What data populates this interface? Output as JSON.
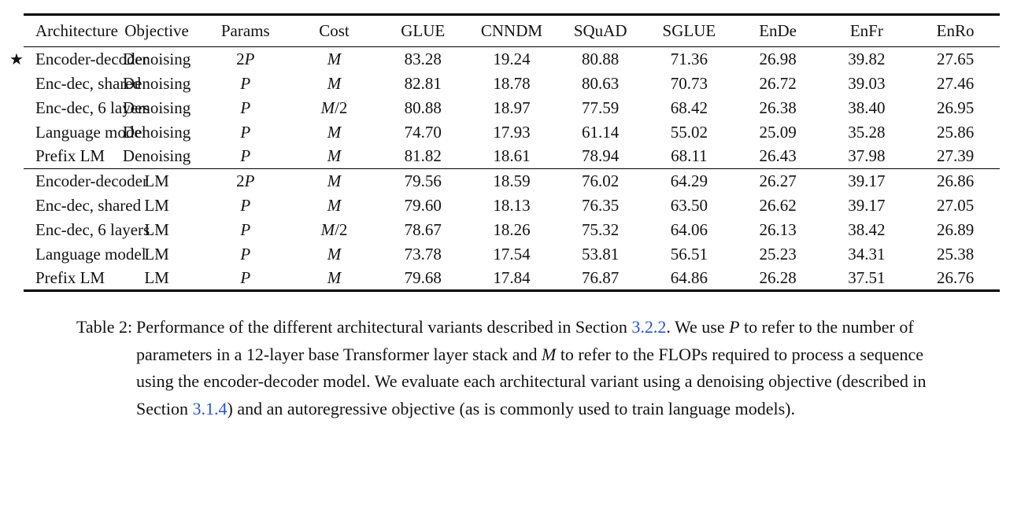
{
  "colors": {
    "link_blue": "#2556c7",
    "text": "#121212",
    "rule": "#000000",
    "background": "#ffffff"
  },
  "table": {
    "star_symbol": "★",
    "columns": [
      "Architecture",
      "Objective",
      "Params",
      "Cost",
      "GLUE",
      "CNNDM",
      "SQuAD",
      "SGLUE",
      "EnDe",
      "EnFr",
      "EnRo"
    ],
    "sections": [
      {
        "rows": [
          {
            "star": true,
            "cells": [
              "Encoder-decoder",
              "Denoising",
              "2P",
              "M",
              "83.28",
              "19.24",
              "80.88",
              "71.36",
              "26.98",
              "39.82",
              "27.65"
            ],
            "bold": [
              4,
              5,
              6,
              7,
              8,
              9,
              10
            ]
          },
          {
            "star": false,
            "cells": [
              "Enc-dec, shared",
              "Denoising",
              "P",
              "M",
              "82.81",
              "18.78",
              "80.63",
              "70.73",
              "26.72",
              "39.03",
              "27.46"
            ],
            "bold": [
              6,
              7,
              10
            ]
          },
          {
            "star": false,
            "cells": [
              "Enc-dec, 6 layers",
              "Denoising",
              "P",
              "M/2",
              "80.88",
              "18.97",
              "77.59",
              "68.42",
              "26.38",
              "38.40",
              "26.95"
            ],
            "bold": []
          },
          {
            "star": false,
            "cells": [
              "Language model",
              "Denoising",
              "P",
              "M",
              "74.70",
              "17.93",
              "61.14",
              "55.02",
              "25.09",
              "35.28",
              "25.86"
            ],
            "bold": []
          },
          {
            "star": false,
            "cells": [
              "Prefix LM",
              "Denoising",
              "P",
              "M",
              "81.82",
              "18.61",
              "78.94",
              "68.11",
              "26.43",
              "37.98",
              "27.39"
            ],
            "bold": []
          }
        ]
      },
      {
        "rows": [
          {
            "star": false,
            "cells": [
              "Encoder-decoder",
              "LM",
              "2P",
              "M",
              "79.56",
              "18.59",
              "76.02",
              "64.29",
              "26.27",
              "39.17",
              "26.86"
            ],
            "bold": []
          },
          {
            "star": false,
            "cells": [
              "Enc-dec, shared",
              "LM",
              "P",
              "M",
              "79.60",
              "18.13",
              "76.35",
              "63.50",
              "26.62",
              "39.17",
              "27.05"
            ],
            "bold": []
          },
          {
            "star": false,
            "cells": [
              "Enc-dec, 6 layers",
              "LM",
              "P",
              "M/2",
              "78.67",
              "18.26",
              "75.32",
              "64.06",
              "26.13",
              "38.42",
              "26.89"
            ],
            "bold": []
          },
          {
            "star": false,
            "cells": [
              "Language model",
              "LM",
              "P",
              "M",
              "73.78",
              "17.54",
              "53.81",
              "56.51",
              "25.23",
              "34.31",
              "25.38"
            ],
            "bold": []
          },
          {
            "star": false,
            "cells": [
              "Prefix LM",
              "LM",
              "P",
              "M",
              "79.68",
              "17.84",
              "76.87",
              "64.86",
              "26.28",
              "37.51",
              "26.76"
            ],
            "bold": []
          }
        ]
      }
    ]
  },
  "caption": {
    "label": "Table 2:",
    "segments": [
      {
        "t": "text",
        "v": "Performance of the different architectural variants described in Section "
      },
      {
        "t": "link",
        "v": "3.2.2"
      },
      {
        "t": "text",
        "v": ". We use "
      },
      {
        "t": "math",
        "v": "P"
      },
      {
        "t": "text",
        "v": " to refer to the number of parameters in a 12-layer base Transformer layer stack and "
      },
      {
        "t": "math",
        "v": "M"
      },
      {
        "t": "text",
        "v": " to refer to the FLOPs required to process a sequence using the encoder-decoder model. We evaluate each architectural variant using a denoising objective (described in Section "
      },
      {
        "t": "link",
        "v": "3.1.4"
      },
      {
        "t": "text",
        "v": ") and an autoregressive objective (as is commonly used to train language models)."
      }
    ]
  }
}
